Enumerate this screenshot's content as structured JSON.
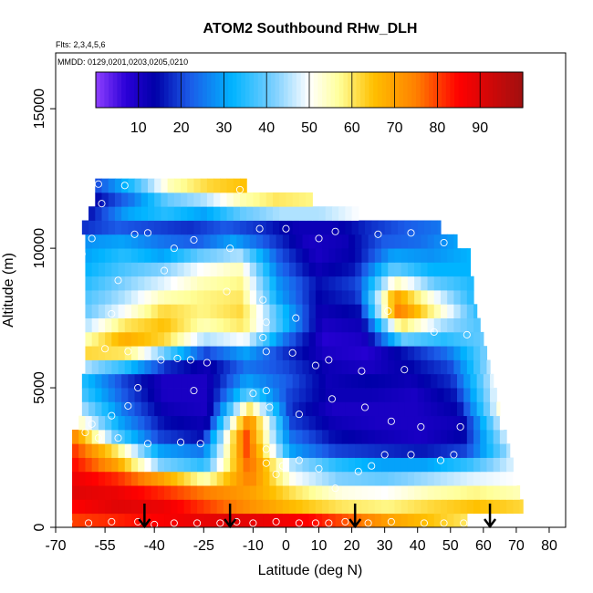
{
  "chart_data": {
    "type": "heatmap",
    "title": "ATOM2 Southbound RHw_DLH",
    "annotations": [
      "Flts: 2,3,4,5,6",
      "MMDD: 0129,0201,0203,0205,0210"
    ],
    "xlabel": "Latitude (deg N)",
    "ylabel": "Altitude (m)",
    "xlim": [
      -70,
      85
    ],
    "ylim": [
      0,
      17000
    ],
    "x_ticks": [
      -70,
      -55,
      -40,
      -25,
      -10,
      0,
      10,
      20,
      30,
      40,
      50,
      60,
      70,
      80
    ],
    "x_tick_labels": [
      "-70",
      "-55",
      "-40",
      "-25",
      "-10",
      "0",
      "10",
      "20",
      "30",
      "40",
      "50",
      "60",
      "70",
      "80"
    ],
    "y_ticks": [
      0,
      5000,
      10000,
      15000
    ],
    "y_tick_labels": [
      "0",
      "5000",
      "10000",
      "15000"
    ],
    "colorbar": {
      "min": 0,
      "max": 100,
      "ticks": [
        10,
        20,
        30,
        40,
        50,
        60,
        70,
        80,
        90
      ],
      "tick_labels": [
        "10",
        "20",
        "30",
        "40",
        "50",
        "60",
        "70",
        "80",
        "90"
      ],
      "stops": [
        {
          "v": 0,
          "c": "#8f3fff"
        },
        {
          "v": 7,
          "c": "#2b00d8"
        },
        {
          "v": 14,
          "c": "#0000a8"
        },
        {
          "v": 22,
          "c": "#1b5be8"
        },
        {
          "v": 32,
          "c": "#00b4ff"
        },
        {
          "v": 42,
          "c": "#7fd0ff"
        },
        {
          "v": 50,
          "c": "#ffffff"
        },
        {
          "v": 57,
          "c": "#ffff9a"
        },
        {
          "v": 65,
          "c": "#ffc000"
        },
        {
          "v": 75,
          "c": "#ff8000"
        },
        {
          "v": 85,
          "c": "#ff0000"
        },
        {
          "v": 100,
          "c": "#a01010"
        }
      ]
    },
    "bins": {
      "x_start": -65,
      "x_step": 2,
      "y_step": 500,
      "columns": [
        {
          "x_range": [
            -65,
            -49
          ],
          "top": 3500
        },
        {
          "x_range": [
            -49,
            -29
          ],
          "top": 3500
        },
        {
          "x_range": [
            -29,
            70
          ],
          "top": 3500
        }
      ]
    },
    "altitude_layers": [
      {
        "alt": 250,
        "lat_min": -65,
        "lat_max": 55,
        "values": [
          80,
          82,
          85,
          88,
          90,
          88,
          85,
          78,
          70,
          65,
          60
        ]
      },
      {
        "alt": 750,
        "lat_min": -65,
        "lat_max": 72,
        "values": [
          85,
          90,
          88,
          80,
          72,
          65,
          60,
          58,
          62,
          65,
          62
        ]
      },
      {
        "alt": 1250,
        "lat_min": -65,
        "lat_max": 71,
        "values": [
          90,
          88,
          82,
          75,
          70,
          60,
          52,
          50,
          55,
          58,
          55
        ]
      },
      {
        "alt": 1750,
        "lat_min": -65,
        "lat_max": 70,
        "values": [
          88,
          82,
          70,
          55,
          75,
          50,
          42,
          40,
          44,
          48,
          50
        ]
      },
      {
        "alt": 2250,
        "lat_min": -65,
        "lat_max": 69,
        "values": [
          85,
          70,
          42,
          35,
          78,
          45,
          35,
          30,
          30,
          36,
          48
        ]
      },
      {
        "alt": 2750,
        "lat_min": -65,
        "lat_max": 68,
        "values": [
          82,
          60,
          30,
          25,
          80,
          30,
          20,
          18,
          16,
          20,
          45
        ]
      },
      {
        "alt": 3250,
        "lat_min": -65,
        "lat_max": 67,
        "values": [
          75,
          40,
          20,
          15,
          80,
          25,
          15,
          12,
          10,
          14,
          48
        ]
      },
      {
        "alt": 3750,
        "lat_min": -63,
        "lat_max": 66,
        "values": [
          55,
          30,
          15,
          12,
          75,
          20,
          12,
          10,
          10,
          12,
          50
        ]
      },
      {
        "alt": 4250,
        "lat_min": -62,
        "lat_max": 65,
        "values": [
          45,
          25,
          12,
          10,
          60,
          18,
          10,
          10,
          10,
          14,
          52
        ]
      },
      {
        "alt": 4750,
        "lat_min": -62,
        "lat_max": 64,
        "values": [
          38,
          22,
          10,
          10,
          40,
          20,
          12,
          12,
          10,
          16,
          50
        ]
      },
      {
        "alt": 5250,
        "lat_min": -62,
        "lat_max": 63,
        "values": [
          35,
          20,
          10,
          10,
          30,
          22,
          12,
          14,
          12,
          18,
          48
        ]
      },
      {
        "alt": 5750,
        "lat_min": -61,
        "lat_max": 62,
        "values": [
          45,
          35,
          18,
          12,
          25,
          20,
          12,
          10,
          14,
          20,
          45
        ]
      },
      {
        "alt": 6250,
        "lat_min": -61,
        "lat_max": 61,
        "values": [
          62,
          60,
          40,
          20,
          30,
          18,
          10,
          8,
          16,
          24,
          42
        ]
      },
      {
        "alt": 6750,
        "lat_min": -61,
        "lat_max": 60,
        "values": [
          55,
          68,
          62,
          45,
          50,
          25,
          8,
          10,
          40,
          35,
          40
        ]
      },
      {
        "alt": 7250,
        "lat_min": -61,
        "lat_max": 59,
        "values": [
          45,
          60,
          65,
          55,
          60,
          35,
          10,
          12,
          60,
          45,
          38
        ]
      },
      {
        "alt": 7750,
        "lat_min": -61,
        "lat_max": 58,
        "values": [
          40,
          50,
          62,
          58,
          62,
          35,
          12,
          15,
          75,
          55,
          36
        ]
      },
      {
        "alt": 8250,
        "lat_min": -61,
        "lat_max": 57,
        "values": [
          38,
          45,
          55,
          58,
          60,
          30,
          14,
          18,
          70,
          50,
          34
        ]
      },
      {
        "alt": 8750,
        "lat_min": -61,
        "lat_max": 57,
        "values": [
          35,
          42,
          48,
          55,
          58,
          28,
          15,
          20,
          55,
          40,
          34
        ]
      },
      {
        "alt": 9250,
        "lat_min": -61,
        "lat_max": 56,
        "values": [
          32,
          38,
          42,
          50,
          55,
          25,
          12,
          16,
          40,
          32,
          32
        ]
      },
      {
        "alt": 9750,
        "lat_min": -61,
        "lat_max": 56,
        "values": [
          30,
          35,
          30,
          40,
          45,
          22,
          10,
          14,
          30,
          28,
          32
        ]
      },
      {
        "alt": 10250,
        "lat_min": -61,
        "lat_max": 52,
        "values": [
          28,
          30,
          25,
          22,
          30,
          20,
          10,
          12,
          22,
          24,
          30
        ]
      },
      {
        "alt": 10750,
        "lat_min": -62,
        "lat_max": 47,
        "values": [
          18,
          22,
          20,
          18,
          22,
          18,
          12,
          12,
          18,
          22,
          25
        ]
      },
      {
        "alt": 11250,
        "lat_min": -60,
        "lat_max": 22,
        "values": [
          15,
          30,
          35,
          30,
          40,
          45,
          45,
          50
        ]
      },
      {
        "alt": 11750,
        "lat_min": -58,
        "lat_max": 8,
        "values": [
          14,
          25,
          40,
          45,
          55,
          60,
          58
        ]
      },
      {
        "alt": 12250,
        "lat_min": -58,
        "lat_max": -12,
        "values": [
          20,
          35,
          55,
          62,
          65
        ]
      }
    ],
    "profile_markers_lat": [
      -43,
      -17,
      21,
      62
    ],
    "sample_points": [
      [
        -57,
        12300
      ],
      [
        -49,
        12250
      ],
      [
        -14,
        12100
      ],
      [
        -56,
        11600
      ],
      [
        -59,
        10350
      ],
      [
        -46,
        10500
      ],
      [
        -42,
        10550
      ],
      [
        -28,
        10300
      ],
      [
        -8,
        10700
      ],
      [
        0,
        10700
      ],
      [
        10,
        10350
      ],
      [
        15,
        10600
      ],
      [
        28,
        10500
      ],
      [
        -17,
        10000
      ],
      [
        -34,
        10000
      ],
      [
        38,
        10550
      ],
      [
        48,
        10200
      ],
      [
        -62,
        9800
      ],
      [
        -51,
        8850
      ],
      [
        -37,
        9200
      ],
      [
        -7,
        8150
      ],
      [
        -53,
        7650
      ],
      [
        -18,
        8450
      ],
      [
        3,
        7500
      ],
      [
        31,
        7750
      ],
      [
        45,
        7000
      ],
      [
        55,
        6900
      ],
      [
        -55,
        6400
      ],
      [
        -65,
        6250
      ],
      [
        -48,
        6300
      ],
      [
        -38,
        6000
      ],
      [
        -33,
        6050
      ],
      [
        -29,
        6000
      ],
      [
        -24,
        5900
      ],
      [
        -6,
        7350
      ],
      [
        -7,
        6800
      ],
      [
        -6,
        6300
      ],
      [
        2,
        6250
      ],
      [
        9,
        5800
      ],
      [
        13,
        6000
      ],
      [
        23,
        5600
      ],
      [
        36,
        5650
      ],
      [
        -64,
        5000
      ],
      [
        -45,
        5000
      ],
      [
        -48,
        4350
      ],
      [
        -53,
        4000
      ],
      [
        -59,
        3700
      ],
      [
        -61,
        3400
      ],
      [
        -57,
        3200
      ],
      [
        -51,
        3200
      ],
      [
        -42,
        3000
      ],
      [
        -32,
        3050
      ],
      [
        -26,
        3000
      ],
      [
        -28,
        4900
      ],
      [
        -10,
        4800
      ],
      [
        -6,
        4900
      ],
      [
        -5,
        4300
      ],
      [
        4,
        4050
      ],
      [
        14,
        4600
      ],
      [
        24,
        4300
      ],
      [
        32,
        3800
      ],
      [
        41,
        3600
      ],
      [
        53,
        3600
      ],
      [
        -6,
        2800
      ],
      [
        -6,
        2300
      ],
      [
        -3,
        1900
      ],
      [
        -1,
        2200
      ],
      [
        4,
        2400
      ],
      [
        10,
        2100
      ],
      [
        15,
        1400
      ],
      [
        22,
        2000
      ],
      [
        26,
        2200
      ],
      [
        30,
        2600
      ],
      [
        38,
        2600
      ],
      [
        47,
        2400
      ],
      [
        51,
        2600
      ],
      [
        -66,
        200
      ],
      [
        -60,
        150
      ],
      [
        -53,
        200
      ],
      [
        -45,
        200
      ],
      [
        -40,
        100
      ],
      [
        -34,
        150
      ],
      [
        -27,
        150
      ],
      [
        -20,
        150
      ],
      [
        -15,
        200
      ],
      [
        -10,
        150
      ],
      [
        -3,
        200
      ],
      [
        4,
        150
      ],
      [
        9,
        150
      ],
      [
        13,
        150
      ],
      [
        18,
        200
      ],
      [
        25,
        150
      ],
      [
        32,
        200
      ],
      [
        42,
        150
      ],
      [
        48,
        150
      ],
      [
        54,
        150
      ]
    ]
  }
}
